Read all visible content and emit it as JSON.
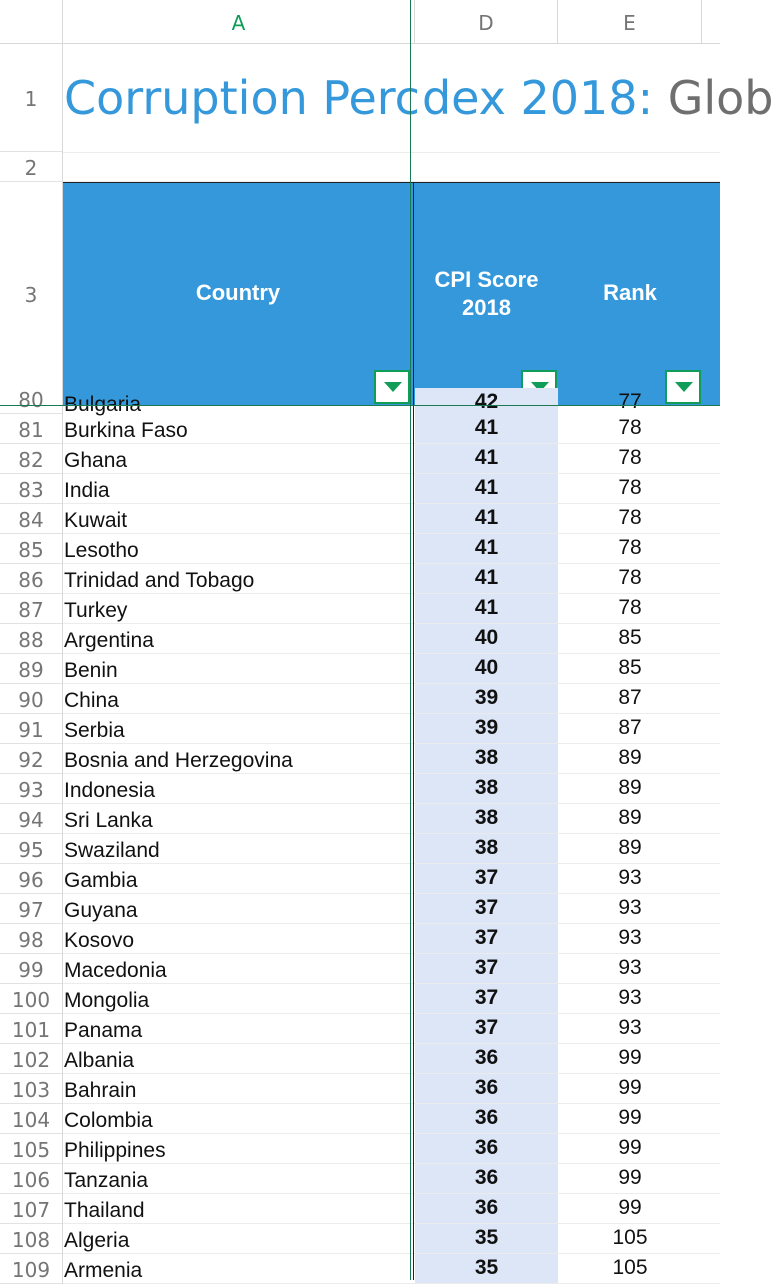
{
  "columns": [
    "A",
    "D",
    "E"
  ],
  "title": {
    "blue": "Corruption Perc",
    "blue2": "dex 2018:",
    "gray": "Glob"
  },
  "row_numbers_top": [
    "1",
    "2",
    "3"
  ],
  "header": {
    "country": "Country",
    "score_line1": "CPI Score",
    "score_line2": "2018",
    "rank": "Rank"
  },
  "partial_row": {
    "num": "80",
    "country": "Bulgaria",
    "score": "42",
    "rank": "77"
  },
  "rows": [
    {
      "num": "81",
      "country": "Burkina Faso",
      "score": "41",
      "rank": "78"
    },
    {
      "num": "82",
      "country": "Ghana",
      "score": "41",
      "rank": "78"
    },
    {
      "num": "83",
      "country": "India",
      "score": "41",
      "rank": "78"
    },
    {
      "num": "84",
      "country": "Kuwait",
      "score": "41",
      "rank": "78"
    },
    {
      "num": "85",
      "country": "Lesotho",
      "score": "41",
      "rank": "78"
    },
    {
      "num": "86",
      "country": "Trinidad and Tobago",
      "score": "41",
      "rank": "78"
    },
    {
      "num": "87",
      "country": "Turkey",
      "score": "41",
      "rank": "78"
    },
    {
      "num": "88",
      "country": "Argentina",
      "score": "40",
      "rank": "85"
    },
    {
      "num": "89",
      "country": "Benin",
      "score": "40",
      "rank": "85"
    },
    {
      "num": "90",
      "country": "China",
      "score": "39",
      "rank": "87"
    },
    {
      "num": "91",
      "country": "Serbia",
      "score": "39",
      "rank": "87"
    },
    {
      "num": "92",
      "country": "Bosnia and Herzegovina",
      "score": "38",
      "rank": "89"
    },
    {
      "num": "93",
      "country": "Indonesia",
      "score": "38",
      "rank": "89"
    },
    {
      "num": "94",
      "country": "Sri Lanka",
      "score": "38",
      "rank": "89"
    },
    {
      "num": "95",
      "country": "Swaziland",
      "score": "38",
      "rank": "89"
    },
    {
      "num": "96",
      "country": "Gambia",
      "score": "37",
      "rank": "93"
    },
    {
      "num": "97",
      "country": "Guyana",
      "score": "37",
      "rank": "93"
    },
    {
      "num": "98",
      "country": "Kosovo",
      "score": "37",
      "rank": "93"
    },
    {
      "num": "99",
      "country": "Macedonia",
      "score": "37",
      "rank": "93"
    },
    {
      "num": "100",
      "country": "Mongolia",
      "score": "37",
      "rank": "93"
    },
    {
      "num": "101",
      "country": "Panama",
      "score": "37",
      "rank": "93"
    },
    {
      "num": "102",
      "country": "Albania",
      "score": "36",
      "rank": "99"
    },
    {
      "num": "103",
      "country": "Bahrain",
      "score": "36",
      "rank": "99"
    },
    {
      "num": "104",
      "country": "Colombia",
      "score": "36",
      "rank": "99"
    },
    {
      "num": "105",
      "country": "Philippines",
      "score": "36",
      "rank": "99"
    },
    {
      "num": "106",
      "country": "Tanzania",
      "score": "36",
      "rank": "99"
    },
    {
      "num": "107",
      "country": "Thailand",
      "score": "36",
      "rank": "99"
    },
    {
      "num": "108",
      "country": "Algeria",
      "score": "35",
      "rank": "105"
    },
    {
      "num": "109",
      "country": "Armenia",
      "score": "35",
      "rank": "105"
    }
  ],
  "colors": {
    "header_blue": "#3498db",
    "score_fill": "#dce6f6",
    "accent_green": "#0f9d58"
  }
}
